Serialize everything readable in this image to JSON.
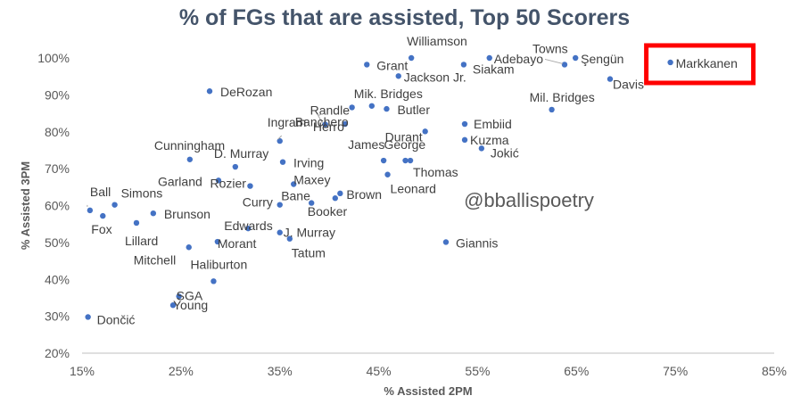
{
  "chart_data": {
    "type": "scatter",
    "title": "% of FGs that are assisted, Top 50 Scorers",
    "xlabel": "% Assisted 2PM",
    "ylabel": "% Assisted 3PM",
    "xlim": [
      0.15,
      0.85
    ],
    "ylim": [
      0.2,
      1.0
    ],
    "x_ticks": [
      "15%",
      "25%",
      "35%",
      "45%",
      "55%",
      "65%",
      "75%",
      "85%"
    ],
    "y_ticks": [
      "20%",
      "30%",
      "40%",
      "50%",
      "60%",
      "70%",
      "80%",
      "90%",
      "100%"
    ],
    "grid": false,
    "marker_color": "#4472c4",
    "highlight_color": "#ff0000",
    "highlighted": "Markkanen",
    "watermark": "@bballispoetry",
    "points": [
      {
        "name": "Williamson",
        "x": 0.483,
        "y": 1.0
      },
      {
        "name": "Adebayo",
        "x": 0.562,
        "y": 1.0
      },
      {
        "name": "Towns",
        "x": 0.638,
        "y": 0.982
      },
      {
        "name": "Şengün",
        "x": 0.649,
        "y": 1.0
      },
      {
        "name": "Markkanen",
        "x": 0.745,
        "y": 0.988
      },
      {
        "name": "Grant",
        "x": 0.438,
        "y": 0.982
      },
      {
        "name": "Siakam",
        "x": 0.536,
        "y": 0.982
      },
      {
        "name": "Jackson Jr.",
        "x": 0.47,
        "y": 0.951
      },
      {
        "name": "Davis",
        "x": 0.684,
        "y": 0.943
      },
      {
        "name": "DeRozan",
        "x": 0.279,
        "y": 0.91
      },
      {
        "name": "Mik. Bridges",
        "x": 0.443,
        "y": 0.87
      },
      {
        "name": "Randle",
        "x": 0.423,
        "y": 0.866
      },
      {
        "name": "Butler",
        "x": 0.458,
        "y": 0.862
      },
      {
        "name": "Mil. Bridges",
        "x": 0.625,
        "y": 0.86
      },
      {
        "name": "Banchero",
        "x": 0.396,
        "y": 0.82
      },
      {
        "name": "Embiid",
        "x": 0.537,
        "y": 0.821
      },
      {
        "name": "Herro",
        "x": 0.416,
        "y": 0.821
      },
      {
        "name": "Ingram",
        "x": 0.35,
        "y": 0.775
      },
      {
        "name": "Durant",
        "x": 0.497,
        "y": 0.801
      },
      {
        "name": "Kuzma",
        "x": 0.537,
        "y": 0.778
      },
      {
        "name": "Jokić",
        "x": 0.554,
        "y": 0.755
      },
      {
        "name": "Cunningham",
        "x": 0.259,
        "y": 0.725
      },
      {
        "name": "D. Murray",
        "x": 0.305,
        "y": 0.705
      },
      {
        "name": "Irving",
        "x": 0.353,
        "y": 0.718
      },
      {
        "name": "James",
        "x": 0.455,
        "y": 0.722
      },
      {
        "name": "George",
        "x": 0.477,
        "y": 0.722
      },
      {
        "name": "Thomas",
        "x": 0.482,
        "y": 0.722
      },
      {
        "name": "Leonard",
        "x": 0.459,
        "y": 0.684
      },
      {
        "name": "Garland",
        "x": 0.288,
        "y": 0.668
      },
      {
        "name": "Rozier",
        "x": 0.32,
        "y": 0.653
      },
      {
        "name": "Maxey",
        "x": 0.364,
        "y": 0.658
      },
      {
        "name": "Brown",
        "x": 0.411,
        "y": 0.633
      },
      {
        "name": "Booker",
        "x": 0.406,
        "y": 0.62
      },
      {
        "name": "Bane",
        "x": 0.382,
        "y": 0.607
      },
      {
        "name": "Curry",
        "x": 0.35,
        "y": 0.602
      },
      {
        "name": "Ball",
        "x": 0.158,
        "y": 0.587
      },
      {
        "name": "Simons",
        "x": 0.183,
        "y": 0.602
      },
      {
        "name": "Fox",
        "x": 0.171,
        "y": 0.572
      },
      {
        "name": "Brunson",
        "x": 0.222,
        "y": 0.579
      },
      {
        "name": "Lillard",
        "x": 0.205,
        "y": 0.553
      },
      {
        "name": "Edwards",
        "x": 0.318,
        "y": 0.538
      },
      {
        "name": "J. Murray",
        "x": 0.35,
        "y": 0.527
      },
      {
        "name": "Tatum",
        "x": 0.36,
        "y": 0.51
      },
      {
        "name": "Morant",
        "x": 0.287,
        "y": 0.502
      },
      {
        "name": "Mitchell",
        "x": 0.258,
        "y": 0.487
      },
      {
        "name": "Giannis",
        "x": 0.518,
        "y": 0.501
      },
      {
        "name": "Haliburton",
        "x": 0.283,
        "y": 0.395
      },
      {
        "name": "SGA",
        "x": 0.248,
        "y": 0.354
      },
      {
        "name": "Young",
        "x": 0.242,
        "y": 0.33
      },
      {
        "name": "Dončić",
        "x": 0.156,
        "y": 0.298
      }
    ]
  }
}
